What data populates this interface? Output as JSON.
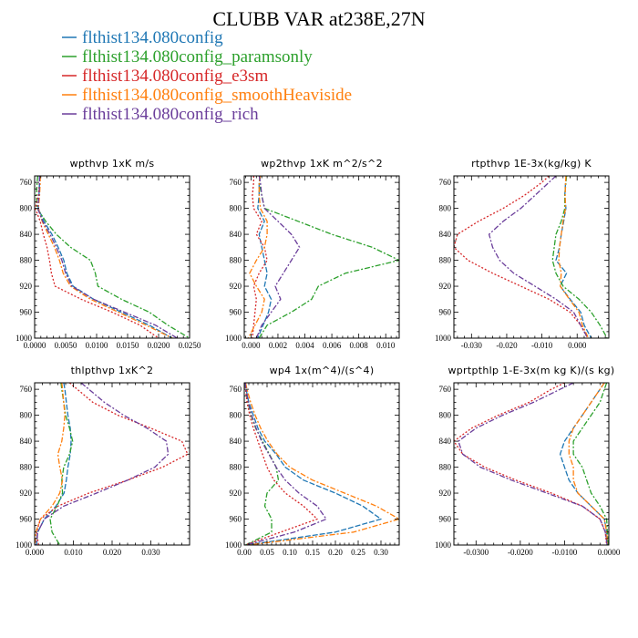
{
  "title": "CLUBB VAR at238E,27N",
  "colors": {
    "blue": "#1f77b4",
    "green": "#2ca02c",
    "red": "#d62728",
    "orange": "#ff7f0e",
    "purple": "#6a3d9a"
  },
  "legend": [
    {
      "label": "flthist134.080config",
      "color": "#1f77b4"
    },
    {
      "label": "flthist134.080config_paramsonly",
      "color": "#2ca02c"
    },
    {
      "label": "flthist134.080config_e3sm",
      "color": "#d62728"
    },
    {
      "label": "flthist134.080config_smoothHeaviside",
      "color": "#ff7f0e"
    },
    {
      "label": "flthist134.080config_rich",
      "color": "#6a3d9a"
    }
  ],
  "chart_data": [
    {
      "type": "line",
      "title": "wpthvp  1xK m/s",
      "xlim": [
        0,
        0.025
      ],
      "ylim": [
        1000,
        750
      ],
      "xticks": [
        0,
        0.005,
        0.01,
        0.015,
        0.02,
        0.025
      ],
      "xticklabels": [
        "0.0000",
        "0.0050",
        "0.0100",
        "0.0150",
        "0.0200",
        "0.0250"
      ],
      "yticks": [
        760,
        800,
        840,
        880,
        920,
        960,
        1000
      ],
      "y": [
        750,
        760,
        780,
        800,
        820,
        840,
        860,
        880,
        900,
        920,
        940,
        960,
        980,
        1000
      ],
      "series": [
        {
          "name": "flthist134.080config",
          "color": "#1f77b4",
          "dash": "6,2",
          "values": [
            0.0008,
            0.0008,
            0.0007,
            0.0006,
            0.0015,
            0.0028,
            0.0038,
            0.0047,
            0.0052,
            0.0062,
            0.0095,
            0.014,
            0.0185,
            0.0222
          ]
        },
        {
          "name": "flthist134.080config_paramsonly",
          "color": "#2ca02c",
          "dash": "6,2,2,2",
          "values": [
            0.0005,
            0.0004,
            0.0003,
            0.0004,
            0.0018,
            0.0035,
            0.0058,
            0.009,
            0.0098,
            0.0102,
            0.014,
            0.0185,
            0.0215,
            0.025
          ]
        },
        {
          "name": "flthist134.080config_e3sm",
          "color": "#d62728",
          "dash": "2,2",
          "values": [
            0.0009,
            0.0008,
            0.0006,
            0.0001,
            0.0009,
            0.0014,
            0.002,
            0.0024,
            0.0027,
            0.0033,
            0.0075,
            0.0125,
            0.017,
            0.02
          ]
        },
        {
          "name": "flthist134.080config_smoothHeaviside",
          "color": "#ff7f0e",
          "dash": "6,2,2,2",
          "values": [
            0.0009,
            0.0009,
            0.0008,
            0.0006,
            0.0012,
            0.0022,
            0.0032,
            0.004,
            0.0046,
            0.0058,
            0.009,
            0.0135,
            0.018,
            0.0222
          ]
        },
        {
          "name": "flthist134.080config_rich",
          "color": "#6a3d9a",
          "dash": "6,2,2,2",
          "values": [
            0.0008,
            0.0008,
            0.0007,
            0.0005,
            0.0013,
            0.0025,
            0.0035,
            0.0044,
            0.005,
            0.006,
            0.0095,
            0.0145,
            0.0195,
            0.023
          ]
        }
      ]
    },
    {
      "type": "line",
      "title": "wp2thvp  1xK m^2/s^2",
      "xlim": [
        -0.0005,
        0.011
      ],
      "ylim": [
        1000,
        750
      ],
      "xticks": [
        0,
        0.002,
        0.004,
        0.006,
        0.008,
        0.01
      ],
      "xticklabels": [
        "0.000",
        "0.002",
        "0.004",
        "0.006",
        "0.008",
        "0.010"
      ],
      "yticks": [
        760,
        800,
        840,
        880,
        920,
        960,
        1000
      ],
      "y": [
        750,
        760,
        780,
        800,
        820,
        840,
        860,
        880,
        900,
        920,
        940,
        960,
        980,
        1000
      ],
      "series": [
        {
          "name": "flthist134.080config",
          "color": "#1f77b4",
          "dash": "6,2",
          "values": [
            0.0007,
            0.0006,
            0.0006,
            0.0005,
            0.001,
            0.0006,
            0.0008,
            0.001,
            0.0012,
            0.001,
            0.0015,
            0.0013,
            0.0009,
            0.0005
          ]
        },
        {
          "name": "flthist134.080config_paramsonly",
          "color": "#2ca02c",
          "dash": "6,2,2,2",
          "values": [
            0.0007,
            0.0006,
            0.0008,
            0.001,
            0.0035,
            0.006,
            0.009,
            0.011,
            0.007,
            0.005,
            0.0045,
            0.003,
            0.0012,
            0.0006
          ]
        },
        {
          "name": "flthist134.080config_e3sm",
          "color": "#d62728",
          "dash": "2,2",
          "values": [
            0.0002,
            0.0002,
            0.0001,
            0.0002,
            0.0008,
            0.0004,
            0.001,
            0.0012,
            0.0006,
            0.0002,
            0.0004,
            0.0003,
            0.0002,
            0.0001
          ]
        },
        {
          "name": "flthist134.080config_smoothHeaviside",
          "color": "#ff7f0e",
          "dash": "6,2,2,2",
          "values": [
            0.0007,
            0.0006,
            0.0006,
            0.0007,
            0.0012,
            0.0012,
            0.001,
            0.0004,
            -0.0001,
            0.0004,
            0.001,
            0.0008,
            0.0003,
            -0.0002
          ]
        },
        {
          "name": "flthist134.080config_rich",
          "color": "#6a3d9a",
          "dash": "6,2,2,2",
          "values": [
            0.0006,
            0.0007,
            0.0008,
            0.001,
            0.002,
            0.003,
            0.0036,
            0.003,
            0.0024,
            0.0018,
            0.0022,
            0.0015,
            0.0008,
            0.0004
          ]
        }
      ]
    },
    {
      "type": "line",
      "title": "rtpthvp  1E-3x(kg/kg) K",
      "xlim": [
        -0.035,
        0.009
      ],
      "ylim": [
        1000,
        750
      ],
      "xticks": [
        -0.03,
        -0.02,
        -0.01,
        0
      ],
      "xticklabels": [
        "-0.030",
        "-0.020",
        "-0.010",
        "0.000"
      ],
      "yticks": [
        760,
        800,
        840,
        880,
        920,
        960,
        1000
      ],
      "y": [
        750,
        760,
        780,
        800,
        820,
        840,
        860,
        880,
        900,
        920,
        940,
        960,
        980,
        1000
      ],
      "series": [
        {
          "name": "flthist134.080config",
          "color": "#1f77b4",
          "dash": "6,2",
          "values": [
            -0.003,
            -0.0033,
            -0.0035,
            -0.0032,
            -0.0038,
            -0.0045,
            -0.005,
            -0.006,
            -0.003,
            -0.0048,
            -0.002,
            0.001,
            0.002,
            0.004
          ]
        },
        {
          "name": "flthist134.080config_paramsonly",
          "color": "#2ca02c",
          "dash": "6,2,2,2",
          "values": [
            -0.003,
            -0.0032,
            -0.0035,
            -0.0035,
            -0.0045,
            -0.006,
            -0.0065,
            -0.007,
            -0.006,
            -0.004,
            0.0005,
            0.004,
            0.0065,
            0.0085
          ]
        },
        {
          "name": "flthist134.080config_e3sm",
          "color": "#d62728",
          "dash": "2,2",
          "values": [
            -0.008,
            -0.01,
            -0.015,
            -0.021,
            -0.028,
            -0.034,
            -0.035,
            -0.031,
            -0.024,
            -0.016,
            -0.008,
            -0.002,
            0.001,
            0.003
          ]
        },
        {
          "name": "flthist134.080config_smoothHeaviside",
          "color": "#ff7f0e",
          "dash": "6,2,2,2",
          "values": [
            -0.0032,
            -0.0033,
            -0.0034,
            -0.0033,
            -0.004,
            -0.0045,
            -0.005,
            -0.0052,
            -0.0045,
            -0.0048,
            -0.0022,
            0.0005,
            0.0015,
            0.0032
          ]
        },
        {
          "name": "flthist134.080config_rich",
          "color": "#6a3d9a",
          "dash": "6,2,2,2",
          "values": [
            -0.006,
            -0.008,
            -0.012,
            -0.016,
            -0.021,
            -0.025,
            -0.024,
            -0.022,
            -0.018,
            -0.012,
            -0.006,
            -0.001,
            0.001,
            0.003
          ]
        }
      ]
    },
    {
      "type": "line",
      "title": "thlpthvp  1xK^2",
      "xlim": [
        0,
        0.04
      ],
      "ylim": [
        1000,
        750
      ],
      "xticks": [
        0,
        0.01,
        0.02,
        0.03
      ],
      "xticklabels": [
        "0.000",
        "0.010",
        "0.020",
        "0.030"
      ],
      "yticks": [
        760,
        800,
        840,
        880,
        920,
        960,
        1000
      ],
      "y": [
        750,
        760,
        780,
        800,
        820,
        840,
        860,
        880,
        900,
        920,
        940,
        960,
        980,
        1000
      ],
      "series": [
        {
          "name": "flthist134.080config",
          "color": "#1f77b4",
          "dash": "6,2",
          "values": [
            0.0075,
            0.0078,
            0.0082,
            0.0086,
            0.0092,
            0.0094,
            0.0092,
            0.0086,
            0.0082,
            0.0076,
            0.0055,
            0.0025,
            0.0008,
            0.0005
          ]
        },
        {
          "name": "flthist134.080config_paramsonly",
          "color": "#2ca02c",
          "dash": "6,2,2,2",
          "values": [
            0.0068,
            0.007,
            0.0075,
            0.008,
            0.009,
            0.0098,
            0.009,
            0.0075,
            0.007,
            0.0072,
            0.0058,
            0.004,
            0.0045,
            0.0065
          ]
        },
        {
          "name": "flthist134.080config_e3sm",
          "color": "#d62728",
          "dash": "2,2",
          "values": [
            0.009,
            0.011,
            0.015,
            0.0215,
            0.03,
            0.038,
            0.0395,
            0.033,
            0.024,
            0.014,
            0.006,
            0.0015,
            0.0005,
            0.001
          ]
        },
        {
          "name": "flthist134.080config_smoothHeaviside",
          "color": "#ff7f0e",
          "dash": "6,2,2,2",
          "values": [
            0.007,
            0.0072,
            0.0075,
            0.0078,
            0.0075,
            0.007,
            0.006,
            0.0065,
            0.0072,
            0.0065,
            0.0045,
            0.0015,
            0.0003,
            0.0001
          ]
        },
        {
          "name": "flthist134.080config_rich",
          "color": "#6a3d9a",
          "dash": "6,2,2,2",
          "values": [
            0.012,
            0.014,
            0.018,
            0.023,
            0.029,
            0.034,
            0.0345,
            0.031,
            0.024,
            0.016,
            0.0075,
            0.0025,
            0.0008,
            0.0003
          ]
        }
      ]
    },
    {
      "type": "line",
      "title": "wp4  1x(m^4)/(s^4)",
      "xlim": [
        0,
        0.34
      ],
      "ylim": [
        1000,
        750
      ],
      "xticks": [
        0,
        0.05,
        0.1,
        0.15,
        0.2,
        0.25,
        0.3
      ],
      "xticklabels": [
        "0.00",
        "0.05",
        "0.10",
        "0.15",
        "0.20",
        "0.25",
        "0.30"
      ],
      "yticks": [
        760,
        800,
        840,
        880,
        920,
        960,
        1000
      ],
      "y": [
        750,
        760,
        780,
        800,
        820,
        840,
        860,
        880,
        900,
        920,
        940,
        960,
        980,
        1000
      ],
      "series": [
        {
          "name": "flthist134.080config",
          "color": "#1f77b4",
          "dash": "6,2",
          "values": [
            0.002,
            0.004,
            0.01,
            0.02,
            0.03,
            0.045,
            0.07,
            0.09,
            0.13,
            0.2,
            0.26,
            0.3,
            0.2,
            0.005
          ]
        },
        {
          "name": "flthist134.080config_paramsonly",
          "color": "#2ca02c",
          "dash": "6,2,2,2",
          "values": [
            0.002,
            0.003,
            0.008,
            0.015,
            0.025,
            0.04,
            0.055,
            0.07,
            0.075,
            0.05,
            0.045,
            0.06,
            0.06,
            0.003
          ]
        },
        {
          "name": "flthist134.080config_e3sm",
          "color": "#d62728",
          "dash": "2,2",
          "values": [
            0.002,
            0.003,
            0.006,
            0.012,
            0.02,
            0.03,
            0.04,
            0.05,
            0.065,
            0.09,
            0.13,
            0.16,
            0.08,
            0.002
          ]
        },
        {
          "name": "flthist134.080config_smoothHeaviside",
          "color": "#ff7f0e",
          "dash": "6,2,2,2",
          "values": [
            0.003,
            0.006,
            0.014,
            0.024,
            0.036,
            0.052,
            0.072,
            0.1,
            0.15,
            0.22,
            0.29,
            0.34,
            0.24,
            0.008
          ]
        },
        {
          "name": "flthist134.080config_rich",
          "color": "#6a3d9a",
          "dash": "6,2,2,2",
          "values": [
            0.002,
            0.004,
            0.009,
            0.016,
            0.026,
            0.038,
            0.054,
            0.07,
            0.09,
            0.12,
            0.16,
            0.18,
            0.11,
            0.003
          ]
        }
      ]
    },
    {
      "type": "line",
      "title": "wprtpthlp  1-E-3x(m kg K)/(s kg)",
      "xlim": [
        -0.035,
        0
      ],
      "ylim": [
        1000,
        750
      ],
      "xticks": [
        -0.03,
        -0.02,
        -0.01,
        0
      ],
      "xticklabels": [
        "-0.0300",
        "-0.0200",
        "-0.0100",
        "0.0000"
      ],
      "yticks": [
        760,
        800,
        840,
        880,
        920,
        960,
        1000
      ],
      "y": [
        750,
        760,
        780,
        800,
        820,
        840,
        860,
        880,
        900,
        920,
        940,
        960,
        980,
        1000
      ],
      "series": [
        {
          "name": "flthist134.080config",
          "color": "#1f77b4",
          "dash": "6,2",
          "values": [
            -0.001,
            -0.002,
            -0.004,
            -0.006,
            -0.008,
            -0.01,
            -0.011,
            -0.01,
            -0.009,
            -0.007,
            -0.004,
            -0.001,
            -0.0005,
            -0.0003
          ]
        },
        {
          "name": "flthist134.080config_paramsonly",
          "color": "#2ca02c",
          "dash": "6,2,2,2",
          "values": [
            -0.0005,
            -0.001,
            -0.002,
            -0.004,
            -0.006,
            -0.008,
            -0.008,
            -0.006,
            -0.005,
            -0.004,
            -0.002,
            -0.0005,
            -0.0003,
            -0.0002
          ]
        },
        {
          "name": "flthist134.080config_e3sm",
          "color": "#d62728",
          "dash": "2,2",
          "values": [
            -0.01,
            -0.013,
            -0.018,
            -0.025,
            -0.031,
            -0.035,
            -0.033,
            -0.028,
            -0.021,
            -0.013,
            -0.006,
            -0.002,
            -0.0008,
            -0.0005
          ]
        },
        {
          "name": "flthist134.080config_smoothHeaviside",
          "color": "#ff7f0e",
          "dash": "6,2,2,2",
          "values": [
            -0.001,
            -0.002,
            -0.004,
            -0.006,
            -0.008,
            -0.009,
            -0.009,
            -0.008,
            -0.008,
            -0.007,
            -0.004,
            -0.001,
            -0.0005,
            -0.0003
          ]
        },
        {
          "name": "flthist134.080config_rich",
          "color": "#6a3d9a",
          "dash": "6,2,2,2",
          "values": [
            -0.008,
            -0.011,
            -0.017,
            -0.024,
            -0.03,
            -0.034,
            -0.033,
            -0.029,
            -0.022,
            -0.014,
            -0.006,
            -0.002,
            -0.0008,
            -0.0004
          ]
        }
      ]
    }
  ]
}
